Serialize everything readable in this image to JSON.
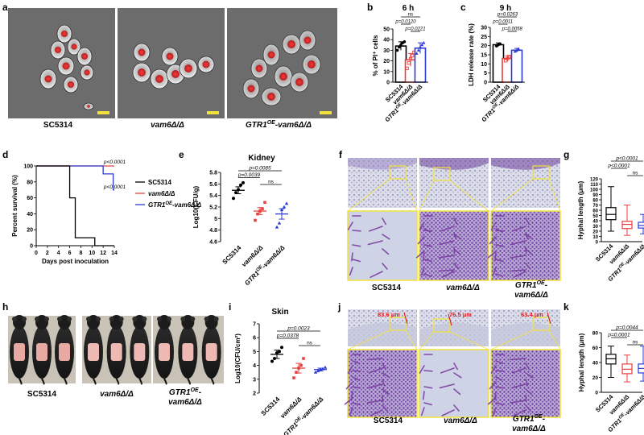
{
  "panels": {
    "a": {
      "letter": "a",
      "images": [
        {
          "label": "SC5314"
        },
        {
          "label": "vam6Δ/Δ"
        },
        {
          "label_main": "GTR1",
          "label_sup": "OE",
          "label_rest": "-vam6Δ/Δ"
        }
      ]
    },
    "b": {
      "letter": "b",
      "title": "6 h"
    },
    "c": {
      "letter": "c",
      "title": "9 h"
    },
    "d": {
      "letter": "d"
    },
    "e": {
      "letter": "e",
      "title": "Kidney"
    },
    "f": {
      "letter": "f",
      "labels": [
        {
          "text": "SC5314"
        },
        {
          "text": "vam6Δ/Δ"
        },
        {
          "main": "GTR1",
          "sup": "OE",
          "rest": "-",
          "line2": "vam6Δ/Δ"
        }
      ]
    },
    "g": {
      "letter": "g"
    },
    "h": {
      "letter": "h",
      "labels": [
        {
          "text": "SC5314"
        },
        {
          "text": "vam6Δ/Δ"
        },
        {
          "main": "GTR1",
          "sup": "OE",
          "rest": "-",
          "line2": "vam6Δ/Δ"
        }
      ]
    },
    "i": {
      "letter": "i",
      "title": "Skin"
    },
    "j": {
      "letter": "j",
      "measurements": [
        "83.6 μm",
        "76.5 μm",
        "63.4 μm"
      ],
      "labels": [
        {
          "text": "SC5314"
        },
        {
          "text": "vam6Δ/Δ"
        },
        {
          "main": "GTR1",
          "sup": "OE",
          "rest": "-",
          "line2": "vam6Δ/Δ"
        }
      ]
    },
    "k": {
      "letter": "k"
    }
  },
  "colors": {
    "sc5314": "#000000",
    "vam6": "#e8403e",
    "gtr1": "#2b3bd6",
    "micro_bg": "#6c6c6c",
    "histo_bg": "#d7dbe6",
    "stain": "#7a3fa1",
    "zoom_box": "#f2e23a",
    "scale_bar": "#f2e23a"
  },
  "chart_data": [
    {
      "id": "b",
      "type": "bar",
      "title": "6 h",
      "ylabel": "% of PI⁺ cells",
      "ylim": [
        0,
        50
      ],
      "yticks": [
        0,
        10,
        20,
        30,
        40,
        50
      ],
      "categories": [
        "SC5314",
        "vam6Δ/Δ",
        "GTR1OE-vam6Δ/Δ"
      ],
      "values": [
        34,
        21,
        32
      ],
      "errors": [
        4,
        6,
        5
      ],
      "points": [
        [
          30,
          33,
          35,
          37,
          38
        ],
        [
          13,
          18,
          22,
          25,
          28
        ],
        [
          27,
          30,
          33,
          35,
          37
        ]
      ],
      "comparisons": [
        {
          "from": 0,
          "to": 2,
          "label": "ns"
        },
        {
          "from": 0,
          "to": 1,
          "label": "p=0.0120"
        },
        {
          "from": 1,
          "to": 2,
          "label": "p=0.0221"
        }
      ]
    },
    {
      "id": "c",
      "type": "bar",
      "title": "9 h",
      "ylabel": "LDH release rate (%)",
      "ylim": [
        0,
        30
      ],
      "yticks": [
        0,
        5,
        10,
        15,
        20,
        25,
        30
      ],
      "categories": [
        "SC5314",
        "vam6Δ/Δ",
        "GTR1OE-vam6Δ/Δ"
      ],
      "values": [
        20.5,
        13,
        17.5
      ],
      "errors": [
        1,
        1.5,
        1
      ],
      "points": [
        [
          19.8,
          20.5,
          21
        ],
        [
          11.8,
          13,
          14
        ],
        [
          16.8,
          17.5,
          18.2
        ]
      ],
      "comparisons": [
        {
          "from": 0,
          "to": 2,
          "label": "p=0.0263"
        },
        {
          "from": 0,
          "to": 1,
          "label": "p=0.0011"
        },
        {
          "from": 1,
          "to": 2,
          "label": "p=0.0058"
        }
      ]
    },
    {
      "id": "d",
      "type": "line",
      "xlabel": "Days post inoculation",
      "ylabel": "Percent survival (%)",
      "xlim": [
        0,
        14
      ],
      "ylim": [
        0,
        100
      ],
      "xticks": [
        0,
        2,
        4,
        6,
        8,
        10,
        12,
        14
      ],
      "yticks": [
        0,
        20,
        40,
        60,
        80,
        100
      ],
      "series": [
        {
          "name": "SC5314",
          "steps": [
            [
              0,
              100
            ],
            [
              6,
              100
            ],
            [
              6,
              60
            ],
            [
              7,
              60
            ],
            [
              7,
              10
            ],
            [
              10.5,
              10
            ],
            [
              10.5,
              0
            ],
            [
              14,
              0
            ]
          ]
        },
        {
          "name": "vam6Δ/Δ",
          "steps": [
            [
              0,
              100
            ],
            [
              14,
              100
            ]
          ]
        },
        {
          "name": "GTR1OE-vam6Δ/Δ",
          "steps": [
            [
              0,
              100
            ],
            [
              12,
              100
            ],
            [
              12,
              90
            ],
            [
              13.8,
              90
            ],
            [
              13.8,
              70
            ],
            [
              14,
              70
            ]
          ]
        }
      ],
      "annotations": [
        "p<0.0001",
        "p<0.0001"
      ],
      "legend": "right"
    },
    {
      "id": "e",
      "type": "scatter",
      "title": "Kidney",
      "ylabel": "Log10(CFU/g)",
      "ylim": [
        4.6,
        5.8
      ],
      "yticks": [
        4.6,
        4.8,
        5.0,
        5.2,
        5.4,
        5.6,
        5.8
      ],
      "categories": [
        "SC5314",
        "vam6Δ/Δ",
        "GTR1OE-vam6Δ/Δ"
      ],
      "means": [
        5.49,
        5.13,
        5.08
      ],
      "errors": [
        0.06,
        0.06,
        0.09
      ],
      "points": [
        [
          5.35,
          5.45,
          5.5,
          5.58,
          5.62
        ],
        [
          4.97,
          5.08,
          5.13,
          5.17,
          5.28
        ],
        [
          4.85,
          4.92,
          5.15,
          5.2,
          5.26
        ]
      ],
      "comparisons": [
        {
          "from": 0,
          "to": 2,
          "label": "p=0.0085"
        },
        {
          "from": 0,
          "to": 1,
          "label": "p=0.0039"
        },
        {
          "from": 1,
          "to": 2,
          "label": "ns"
        }
      ]
    },
    {
      "id": "g",
      "type": "box",
      "ylabel": "Hyphal length (μm)",
      "ylim": [
        0,
        120
      ],
      "yticks": [
        0,
        10,
        20,
        30,
        40,
        50,
        60,
        70,
        80,
        90,
        100,
        110,
        120
      ],
      "categories": [
        "SC5314",
        "vam6Δ/Δ",
        "GTR1OE-vam6Δ/Δ"
      ],
      "boxes": [
        {
          "min": 20,
          "q1": 42,
          "median": 52,
          "q3": 65,
          "max": 105
        },
        {
          "min": 12,
          "q1": 25,
          "median": 33,
          "q3": 39,
          "max": 70
        },
        {
          "min": 15,
          "q1": 26,
          "median": 31,
          "q3": 37,
          "max": 52
        }
      ],
      "comparisons": [
        {
          "from": 0,
          "to": 2,
          "label": "p<0.0001"
        },
        {
          "from": 0,
          "to": 1,
          "label": "p<0.0001"
        },
        {
          "from": 1,
          "to": 2,
          "label": "ns"
        }
      ]
    },
    {
      "id": "i",
      "type": "scatter",
      "title": "Skin",
      "ylabel": "Log10(CFU/cm²)",
      "ylim": [
        2,
        7
      ],
      "yticks": [
        2,
        3,
        4,
        5,
        6,
        7
      ],
      "categories": [
        "SC5314",
        "vam6Δ/Δ",
        "GTR1OE-vam6Δ/Δ"
      ],
      "means": [
        4.8,
        3.8,
        3.7
      ],
      "errors": [
        0.3,
        0.35,
        0.1
      ],
      "points": [
        [
          4.3,
          4.5,
          4.9,
          5.0,
          5.3
        ],
        [
          3.1,
          3.5,
          3.8,
          4.0,
          4.5
        ],
        [
          3.5,
          3.6,
          3.7,
          3.75,
          3.85
        ]
      ],
      "comparisons": [
        {
          "from": 0,
          "to": 2,
          "label": "p=0.0023"
        },
        {
          "from": 0,
          "to": 1,
          "label": "p=0.0378"
        },
        {
          "from": 1,
          "to": 2,
          "label": "ns"
        }
      ]
    },
    {
      "id": "k",
      "type": "box",
      "ylabel": "Hyphal length (μm)",
      "ylim": [
        0,
        80
      ],
      "yticks": [
        0,
        20,
        40,
        60,
        80
      ],
      "categories": [
        "SC5314",
        "vam6Δ/Δ",
        "GTR1OE-vam6Δ/Δ"
      ],
      "boxes": [
        {
          "min": 20,
          "q1": 38,
          "median": 45,
          "q3": 51,
          "max": 62
        },
        {
          "min": 14,
          "q1": 25,
          "median": 31,
          "q3": 38,
          "max": 50
        },
        {
          "min": 15,
          "q1": 26,
          "median": 32,
          "q3": 38,
          "max": 62
        }
      ],
      "comparisons": [
        {
          "from": 0,
          "to": 2,
          "label": "p=0.0044"
        },
        {
          "from": 0,
          "to": 1,
          "label": "p=0.0001"
        },
        {
          "from": 1,
          "to": 2,
          "label": "ns"
        }
      ]
    }
  ]
}
